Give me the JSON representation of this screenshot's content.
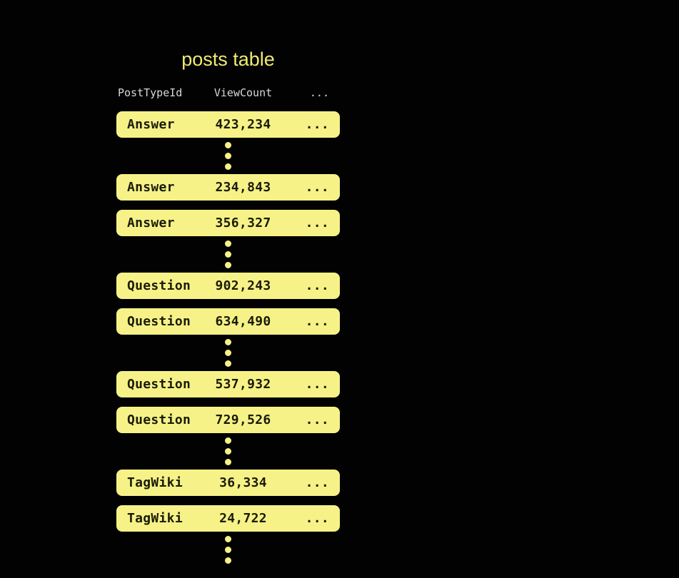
{
  "title": "posts table",
  "table": {
    "columns": [
      "PostTypeId",
      "ViewCount",
      "..."
    ],
    "groups": [
      {
        "rows": [
          {
            "post_type_id": "Answer",
            "view_count": "423,234",
            "more": "..."
          }
        ]
      },
      {
        "rows": [
          {
            "post_type_id": "Answer",
            "view_count": "234,843",
            "more": "..."
          },
          {
            "post_type_id": "Answer",
            "view_count": "356,327",
            "more": "..."
          }
        ]
      },
      {
        "rows": [
          {
            "post_type_id": "Question",
            "view_count": "902,243",
            "more": "..."
          },
          {
            "post_type_id": "Question",
            "view_count": "634,490",
            "more": "..."
          }
        ]
      },
      {
        "rows": [
          {
            "post_type_id": "Question",
            "view_count": "537,932",
            "more": "..."
          },
          {
            "post_type_id": "Question",
            "view_count": "729,526",
            "more": "..."
          }
        ]
      },
      {
        "rows": [
          {
            "post_type_id": "TagWiki",
            "view_count": "36,334",
            "more": "..."
          },
          {
            "post_type_id": "TagWiki",
            "view_count": "24,722",
            "more": "..."
          }
        ]
      }
    ]
  },
  "colors": {
    "background": "#020202",
    "row_fill": "#f6f288",
    "title_text": "#f0eb72",
    "header_text": "#d8d8d8",
    "row_text": "#1b1b08",
    "dot_fill": "#f6f288"
  }
}
